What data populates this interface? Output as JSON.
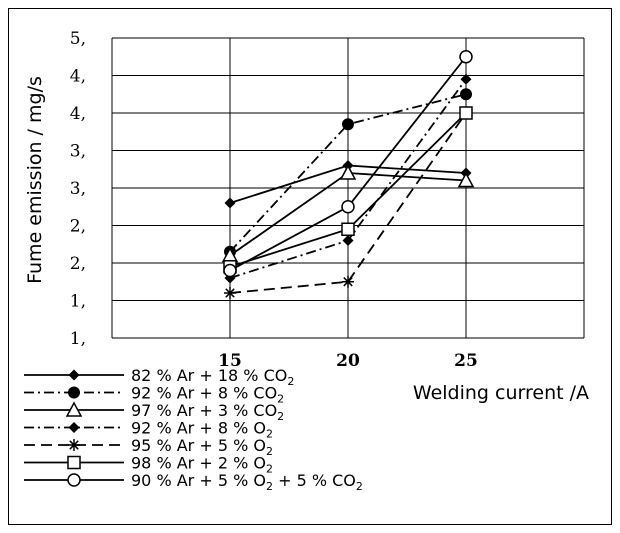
{
  "chart_data": {
    "type": "line",
    "xlabel": "Welding current /A",
    "ylabel": "Fume emission / mg/s",
    "categories": [
      "15",
      "20",
      "25"
    ],
    "ylim": [
      1.0,
      5.0
    ],
    "y_tick_values": [
      1.0,
      1.5,
      2.0,
      2.5,
      3.0,
      3.5,
      4.0,
      4.5,
      5.0
    ],
    "y_tick_labels": [
      "1,",
      "1,",
      "2,",
      "2,",
      "3,",
      "3,",
      "4,",
      "4,",
      "5,"
    ],
    "grid": "horizontal and vertical",
    "legend_position": "bottom",
    "series": [
      {
        "name": "82 % Ar + 18 % CO2",
        "label_main": "82 % Ar + 18 % CO",
        "label_sub": "2",
        "label_tail": "",
        "values": [
          2.8,
          3.3,
          3.2
        ],
        "marker": "diamond",
        "dash": "solid",
        "color": "#000000"
      },
      {
        "name": "92 % Ar + 8 % CO2",
        "label_main": "92 % Ar + 8 % CO",
        "label_sub": "2",
        "label_tail": "",
        "values": [
          2.15,
          3.85,
          4.25
        ],
        "marker": "circle-filled",
        "dash": "dashdot",
        "color": "#000000"
      },
      {
        "name": "97 % Ar + 3 % CO2",
        "label_main": "97 % Ar + 3 % CO",
        "label_sub": "2",
        "label_tail": "",
        "values": [
          2.1,
          3.2,
          3.1
        ],
        "marker": "triangle-open",
        "dash": "solid",
        "color": "#000000"
      },
      {
        "name": "92 % Ar + 8 % O2",
        "label_main": "92 % Ar + 8 % O",
        "label_sub": "2",
        "label_tail": "",
        "values": [
          1.8,
          2.3,
          4.45
        ],
        "marker": "diamond",
        "dash": "dashdot",
        "color": "#000000"
      },
      {
        "name": "95 % Ar + 5 % O2",
        "label_main": "95 % Ar + 5 % O",
        "label_sub": "2",
        "label_tail": "",
        "values": [
          1.6,
          1.75,
          4.0
        ],
        "marker": "asterisk",
        "dash": "dash",
        "color": "#000000"
      },
      {
        "name": "98 % Ar + 2 % O2",
        "label_main": "98 % Ar + 2 % O",
        "label_sub": "2",
        "label_tail": "",
        "values": [
          1.95,
          2.45,
          4.0
        ],
        "marker": "square-open",
        "dash": "solid",
        "color": "#000000"
      },
      {
        "name": "90 % Ar + 5 % O2 + 5 % CO2",
        "label_main": "90 % Ar + 5 % O",
        "label_sub": "2",
        "label_tail": " + 5 % CO",
        "label_sub2": "2",
        "values": [
          1.9,
          2.75,
          4.75
        ],
        "marker": "circle-open",
        "dash": "solid",
        "color": "#000000"
      }
    ]
  }
}
